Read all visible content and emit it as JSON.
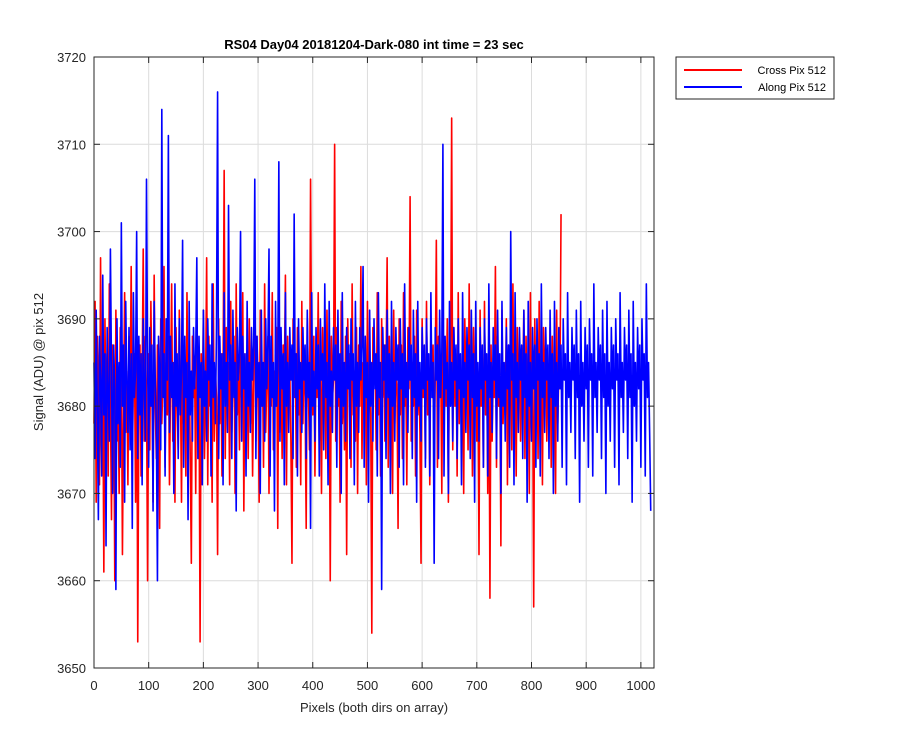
{
  "chart_data": {
    "type": "line",
    "title": "RS04 Day04 20181204-Dark-080 int time = 23 sec",
    "xlabel": "Pixels (both dirs on array)",
    "ylabel": "Signal (ADU) @ pix 512",
    "xlim": [
      0,
      1024
    ],
    "ylim": [
      3650,
      3720
    ],
    "xticks": [
      0,
      100,
      200,
      300,
      400,
      500,
      600,
      700,
      800,
      900,
      1000
    ],
    "yticks": [
      3650,
      3660,
      3670,
      3680,
      3690,
      3700,
      3710,
      3720
    ],
    "grid": true,
    "legend_position": "outside-top-right",
    "x_step": 2,
    "series": [
      {
        "name": "Cross Pix 512",
        "color": "#ff0000",
        "values": [
          3678,
          3692,
          3669,
          3688,
          3682,
          3671,
          3697,
          3676,
          3684,
          3661,
          3690,
          3679,
          3686,
          3672,
          3694,
          3680,
          3667,
          3687,
          3683,
          3660,
          3691,
          3676,
          3682,
          3670,
          3689,
          3685,
          3663,
          3680,
          3693,
          3677,
          3684,
          3671,
          3688,
          3681,
          3696,
          3674,
          3683,
          3686,
          3669,
          3690,
          3653,
          3679,
          3687,
          3672,
          3683,
          3698,
          3676,
          3688,
          3681,
          3660,
          3686,
          3675,
          3692,
          3682,
          3669,
          3695,
          3680,
          3674,
          3687,
          3684,
          3666,
          3690,
          3678,
          3683,
          3696,
          3673,
          3685,
          3679,
          3688,
          3671,
          3682,
          3694,
          3676,
          3685,
          3669,
          3689,
          3680,
          3675,
          3691,
          3683,
          3669,
          3687,
          3678,
          3685,
          3672,
          3693,
          3680,
          3686,
          3674,
          3662,
          3688,
          3681,
          3684,
          3670,
          3690,
          3677,
          3683,
          3653,
          3686,
          3678,
          3691,
          3674,
          3682,
          3697,
          3671,
          3688,
          3680,
          3685,
          3669,
          3694,
          3676,
          3684,
          3681,
          3663,
          3690,
          3678,
          3686,
          3672,
          3683,
          3707,
          3674,
          3689,
          3680,
          3685,
          3671,
          3692,
          3677,
          3683,
          3688,
          3670,
          3694,
          3679,
          3684,
          3675,
          3688,
          3681,
          3693,
          3668,
          3686,
          3679,
          3684,
          3674,
          3690,
          3678,
          3687,
          3672,
          3683,
          3699,
          3676,
          3688,
          3682,
          3669,
          3691,
          3680,
          3685,
          3673,
          3694,
          3677,
          3683,
          3688,
          3670,
          3686,
          3680,
          3693,
          3675,
          3684,
          3680,
          3689,
          3666,
          3691,
          3677,
          3685,
          3674,
          3687,
          3683,
          3695,
          3671,
          3688,
          3680,
          3684,
          3676,
          3662,
          3690,
          3681,
          3686,
          3673,
          3689,
          3679,
          3684,
          3671,
          3692,
          3678,
          3686,
          3681,
          3666,
          3690,
          3682,
          3675,
          3706,
          3683,
          3679,
          3688,
          3672,
          3686,
          3681,
          3693,
          3676,
          3684,
          3670,
          3689,
          3680,
          3685,
          3674,
          3691,
          3678,
          3686,
          3660,
          3688,
          3681,
          3683,
          3710,
          3676,
          3689,
          3680,
          3685,
          3669,
          3692,
          3678,
          3684,
          3675,
          3688,
          3663,
          3690,
          3682,
          3686,
          3673,
          3694,
          3679,
          3684,
          3676,
          3689,
          3670,
          3687,
          3680,
          3696,
          3674,
          3685,
          3681,
          3688,
          3671,
          3692,
          3677,
          3684,
          3679,
          3654,
          3689,
          3683,
          3686,
          3675,
          3693,
          3679,
          3685,
          3672,
          3690,
          3681,
          3687,
          3676,
          3684,
          3697,
          3673,
          3688,
          3680,
          3685,
          3670,
          3691,
          3678,
          3684,
          3682,
          3666,
          3690,
          3679,
          3687,
          3674,
          3693,
          3680,
          3685,
          3671,
          3689,
          3682,
          3704,
          3676,
          3685,
          3680,
          3688,
          3672,
          3691,
          3679,
          3684,
          3677,
          3662,
          3690,
          3681,
          3686,
          3674,
          3692,
          3679,
          3685,
          3671,
          3689,
          3683,
          3687,
          3676,
          3684,
          3699,
          3673,
          3688,
          3681,
          3685,
          3670,
          3691,
          3678,
          3684,
          3680,
          3690,
          3669,
          3687,
          3682,
          3713,
          3675,
          3689,
          3680,
          3686,
          3672,
          3693,
          3678,
          3684,
          3680,
          3688,
          3670,
          3690,
          3683,
          3686,
          3675,
          3694,
          3679,
          3685,
          3672,
          3689,
          3681,
          3687,
          3676,
          3684,
          3663,
          3691,
          3680,
          3686,
          3673,
          3692,
          3679,
          3685,
          3670,
          3689,
          3658,
          3687,
          3676,
          3684,
          3681,
          3696,
          3673,
          3688,
          3680,
          3685,
          3664,
          3691,
          3678,
          3684,
          3679,
          3690,
          3671,
          3687,
          3682,
          3686,
          3675,
          3694,
          3679,
          3685,
          3672,
          3689,
          3681,
          3687,
          3676,
          3684,
          3682,
          3691,
          3674,
          3688,
          3680,
          3686,
          3670,
          3693,
          3678,
          3684,
          3657,
          3690,
          3681,
          3687,
          3674,
          3692,
          3679,
          3685,
          3671,
          3689,
          3683,
          3687,
          3676,
          3684,
          3680,
          3689,
          3673,
          3688,
          3681,
          3685,
          3670,
          3691,
          3678,
          3684,
          3682,
          3702
        ]
      },
      {
        "name": "Along Pix 512",
        "color": "#0000ff",
        "values": [
          3685,
          3674,
          3691,
          3680,
          3667,
          3688,
          3683,
          3672,
          3695,
          3679,
          3686,
          3664,
          3689,
          3681,
          3676,
          3698,
          3684,
          3670,
          3687,
          3682,
          3659,
          3690,
          3678,
          3685,
          3673,
          3701,
          3680,
          3687,
          3669,
          3692,
          3683,
          3677,
          3689,
          3675,
          3686,
          3666,
          3693,
          3681,
          3684,
          3700,
          3674,
          3688,
          3679,
          3686,
          3671,
          3690,
          3682,
          3676,
          3706,
          3685,
          3673,
          3689,
          3680,
          3687,
          3668,
          3692,
          3683,
          3678,
          3660,
          3688,
          3684,
          3675,
          3714,
          3681,
          3686,
          3672,
          3690,
          3683,
          3711,
          3677,
          3688,
          3681,
          3685,
          3670,
          3694,
          3680,
          3686,
          3674,
          3690,
          3679,
          3684,
          3699,
          3673,
          3688,
          3681,
          3685,
          3667,
          3692,
          3679,
          3684,
          3676,
          3689,
          3682,
          3686,
          3697,
          3674,
          3688,
          3681,
          3685,
          3671,
          3691,
          3680,
          3684,
          3676,
          3690,
          3683,
          3687,
          3672,
          3694,
          3681,
          3685,
          3678,
          3689,
          3716,
          3674,
          3688,
          3682,
          3686,
          3671,
          3693,
          3680,
          3685,
          3677,
          3703,
          3683,
          3687,
          3674,
          3691,
          3681,
          3685,
          3668,
          3689,
          3683,
          3686,
          3700,
          3676,
          3688,
          3682,
          3686,
          3672,
          3692,
          3680,
          3685,
          3677,
          3689,
          3683,
          3687,
          3706,
          3674,
          3688,
          3681,
          3685,
          3670,
          3691,
          3680,
          3685,
          3676,
          3690,
          3682,
          3687,
          3698,
          3672,
          3688,
          3681,
          3685,
          3668,
          3692,
          3680,
          3684,
          3708,
          3676,
          3689,
          3682,
          3686,
          3671,
          3693,
          3680,
          3685,
          3677,
          3689,
          3683,
          3687,
          3674,
          3702,
          3681,
          3686,
          3672,
          3690,
          3682,
          3685,
          3677,
          3689,
          3683,
          3687,
          3674,
          3691,
          3681,
          3685,
          3666,
          3693,
          3680,
          3684,
          3676,
          3689,
          3682,
          3687,
          3672,
          3690,
          3683,
          3686,
          3675,
          3694,
          3681,
          3685,
          3671,
          3692,
          3680,
          3684,
          3677,
          3689,
          3683,
          3687,
          3673,
          3691,
          3681,
          3686,
          3670,
          3693,
          3680,
          3685,
          3676,
          3689,
          3682,
          3687,
          3674,
          3690,
          3683,
          3686,
          3671,
          3692,
          3680,
          3685,
          3677,
          3689,
          3683,
          3687,
          3696,
          3673,
          3688,
          3681,
          3685,
          3669,
          3691,
          3680,
          3685,
          3676,
          3690,
          3682,
          3686,
          3672,
          3693,
          3681,
          3685,
          3659,
          3689,
          3683,
          3687,
          3674,
          3691,
          3681,
          3686,
          3670,
          3692,
          3680,
          3685,
          3676,
          3689,
          3683,
          3687,
          3673,
          3690,
          3682,
          3686,
          3671,
          3694,
          3681,
          3685,
          3677,
          3689,
          3683,
          3687,
          3674,
          3691,
          3681,
          3686,
          3669,
          3692,
          3680,
          3685,
          3676,
          3689,
          3682,
          3687,
          3673,
          3690,
          3683,
          3686,
          3672,
          3693,
          3681,
          3685,
          3662,
          3689,
          3683,
          3687,
          3674,
          3691,
          3681,
          3686,
          3710,
          3672,
          3688,
          3682,
          3685,
          3670,
          3692,
          3680,
          3685,
          3676,
          3689,
          3683,
          3687,
          3674,
          3690,
          3682,
          3686,
          3671,
          3693,
          3681,
          3685,
          3677,
          3689,
          3683,
          3687,
          3674,
          3691,
          3681,
          3686,
          3669,
          3692,
          3680,
          3685,
          3676,
          3689,
          3682,
          3687,
          3673,
          3690,
          3683,
          3686,
          3672,
          3694,
          3681,
          3685,
          3677,
          3689,
          3683,
          3687,
          3674,
          3691,
          3681,
          3686,
          3670,
          3692,
          3680,
          3685,
          3676,
          3689,
          3682,
          3687,
          3673,
          3700,
          3683,
          3686,
          3671,
          3693,
          3681,
          3685,
          3677,
          3689,
          3683,
          3687,
          3674,
          3691,
          3681,
          3686,
          3669,
          3692,
          3680,
          3685,
          3676,
          3689,
          3682,
          3687,
          3673,
          3690,
          3683,
          3686,
          3672,
          3694,
          3681,
          3685,
          3677,
          3689,
          3683,
          3687,
          3674,
          3691,
          3681,
          3686,
          3670,
          3692,
          3680,
          3685,
          3676,
          3689,
          3682,
          3687,
          3673,
          3690,
          3683,
          3686,
          3671,
          3693,
          3681,
          3685,
          3677,
          3689,
          3683,
          3687,
          3674,
          3691,
          3681,
          3686,
          3669,
          3692,
          3680,
          3685,
          3676,
          3689,
          3682,
          3687,
          3673,
          3690,
          3683,
          3686,
          3672,
          3694,
          3681,
          3685,
          3677,
          3689,
          3683,
          3687,
          3674,
          3691,
          3681,
          3686,
          3670,
          3692,
          3680,
          3685,
          3676,
          3689,
          3682,
          3687,
          3673,
          3690,
          3683,
          3686,
          3671,
          3693,
          3681,
          3685,
          3677,
          3689,
          3683,
          3687,
          3674,
          3691,
          3681,
          3686,
          3669,
          3692,
          3680,
          3685,
          3676,
          3689,
          3682,
          3687,
          3673,
          3690,
          3683,
          3686,
          3672,
          3694,
          3681,
          3685,
          3677,
          3668
        ]
      }
    ]
  }
}
